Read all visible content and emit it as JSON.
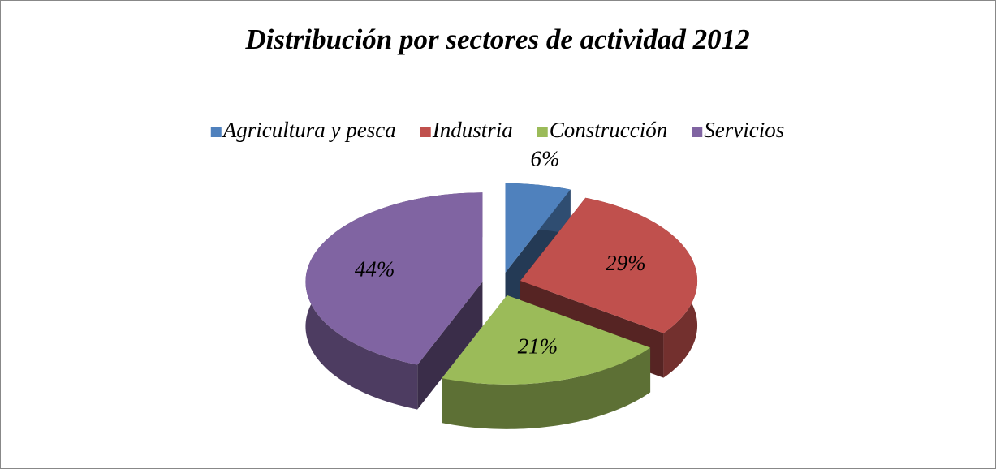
{
  "chart_data": {
    "type": "pie3d",
    "title": "Distribución por sectores de actividad 2012",
    "categories": [
      "Agricultura y pesca",
      "Industria",
      "Construcción",
      "Servicios"
    ],
    "values": [
      6,
      29,
      21,
      44
    ],
    "value_labels": [
      "6%",
      "29%",
      "21%",
      "44%"
    ],
    "colors": [
      "#4f81bd",
      "#c0504d",
      "#9bbb59",
      "#8064a2"
    ],
    "legend": "top"
  }
}
